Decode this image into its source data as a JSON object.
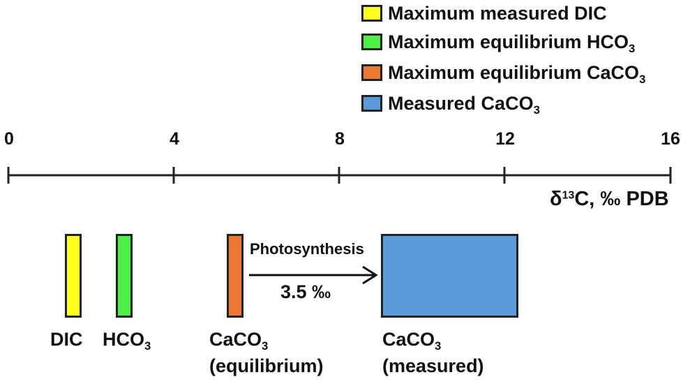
{
  "legend": [
    {
      "id": "dic",
      "text": "Maximum measured DIC",
      "sub": "",
      "color": "#ffff1e"
    },
    {
      "id": "hco3",
      "text": "Maximum equilibrium HCO",
      "sub": "3",
      "color": "#4cf046"
    },
    {
      "id": "caco3-eq",
      "text": "Maximum equilibrium CaCO",
      "sub": "3",
      "color": "#ec7732"
    },
    {
      "id": "caco3-meas",
      "text": "Measured CaCO",
      "sub": "3",
      "color": "#5b9bd8"
    }
  ],
  "axis": {
    "ticks": [
      "0",
      "4",
      "8",
      "12",
      "16"
    ],
    "label_delta": "δ",
    "label_sup": "13",
    "label_rest": "C, ‰ PDB"
  },
  "chart_data": {
    "type": "bar",
    "xlim": [
      0,
      16
    ],
    "bars": [
      {
        "name": "DIC",
        "value": 1.6,
        "color": "#ffff1e"
      },
      {
        "name": "HCO3",
        "value": 2.8,
        "color": "#4cf046"
      },
      {
        "name": "CaCO3 (equilibrium)",
        "value": 5.5,
        "color": "#ec7732"
      },
      {
        "name": "CaCO3 (measured)",
        "range": [
          9.0,
          12.3
        ],
        "color": "#5b9bd8"
      }
    ]
  },
  "labels": {
    "dic": "DIC",
    "hco3_main": "HCO",
    "hco3_sub": "3",
    "caco3_eq_main": "CaCO",
    "caco3_eq_sub": "3",
    "caco3_eq_line2": "(equilibrium)",
    "caco3_meas_main": "CaCO",
    "caco3_meas_sub": "3",
    "caco3_meas_line2": "(measured)"
  },
  "arrow": {
    "top_text": "Photosynthesis",
    "bottom_text": "3.5 ‰"
  }
}
